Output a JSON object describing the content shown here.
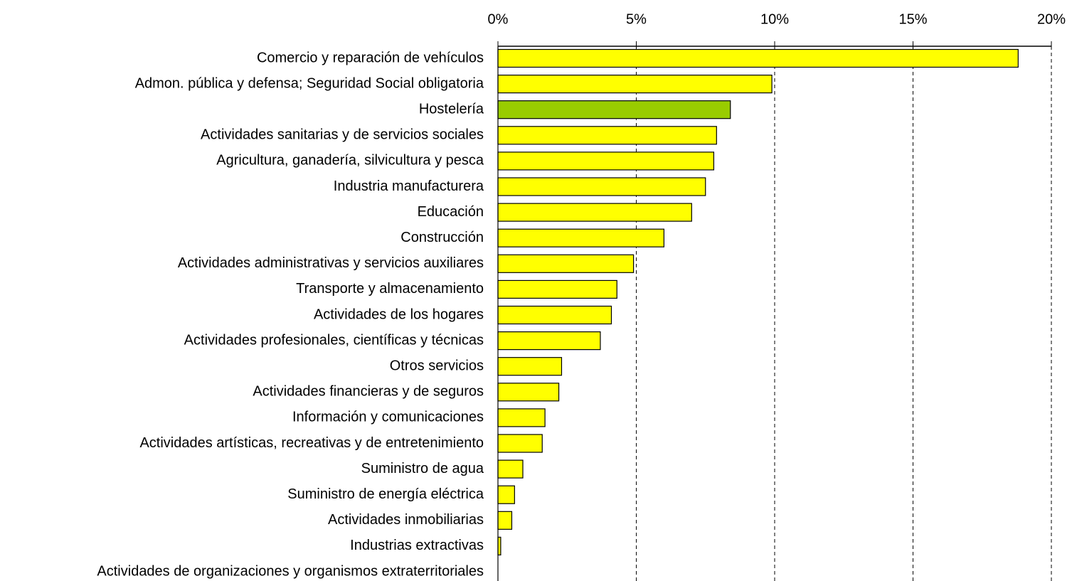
{
  "chart_data": {
    "type": "hbar",
    "categories": [
      "Comercio y reparación de vehículos",
      "Admon. pública y defensa; Seguridad Social obligatoria",
      "Hostelería",
      "Actividades sanitarias y de servicios sociales",
      "Agricultura, ganadería, silvicultura y pesca",
      "Industria manufacturera",
      "Educación",
      "Construcción",
      "Actividades administrativas y servicios auxiliares",
      "Transporte y almacenamiento",
      "Actividades de los hogares",
      "Actividades profesionales, científicas y técnicas",
      "Otros servicios",
      "Actividades financieras y de seguros",
      "Información y comunicaciones",
      "Actividades artísticas, recreativas y de entretenimiento",
      "Suministro de agua",
      "Suministro de energía eléctrica",
      "Actividades inmobiliarias",
      "Industrias extractivas",
      "Actividades de organizaciones y organismos extraterritoriales"
    ],
    "values": [
      18.8,
      9.9,
      8.4,
      7.9,
      7.8,
      7.5,
      7.0,
      6.0,
      4.9,
      4.3,
      4.1,
      3.7,
      2.3,
      2.2,
      1.7,
      1.6,
      0.9,
      0.6,
      0.5,
      0.1,
      0
    ],
    "colors": [
      "#ffff00",
      "#ffff00",
      "#99cc00",
      "#ffff00",
      "#ffff00",
      "#ffff00",
      "#ffff00",
      "#ffff00",
      "#ffff00",
      "#ffff00",
      "#ffff00",
      "#ffff00",
      "#ffff00",
      "#ffff00",
      "#ffff00",
      "#ffff00",
      "#ffff00",
      "#ffff00",
      "#ffff00",
      "#ffff00",
      "#ffff00"
    ],
    "xlim": [
      0,
      20
    ],
    "xticks": [
      {
        "value": 0,
        "label": "0%"
      },
      {
        "value": 5,
        "label": "5%"
      },
      {
        "value": 10,
        "label": "10%"
      },
      {
        "value": 15,
        "label": "15%"
      },
      {
        "value": 20,
        "label": "20%"
      }
    ],
    "grid": true
  }
}
